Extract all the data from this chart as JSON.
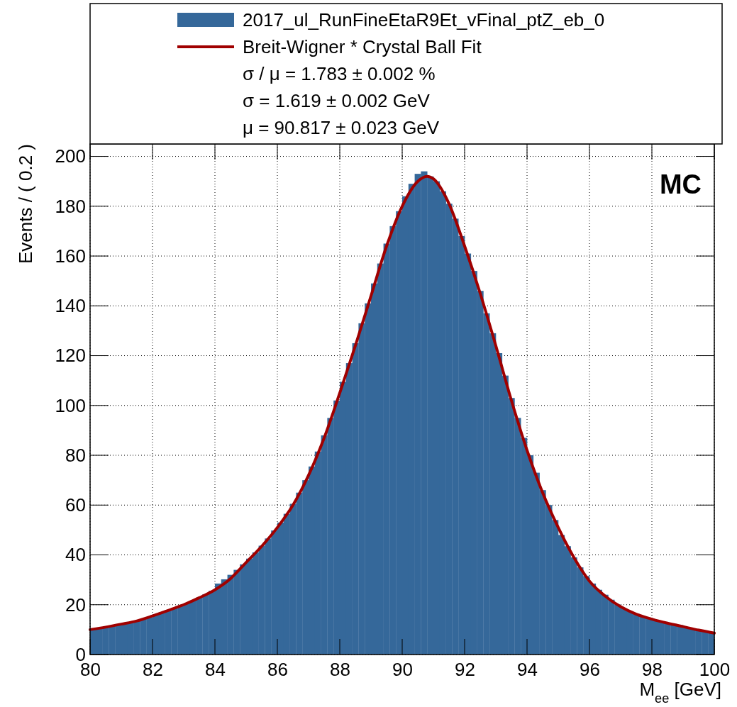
{
  "chart_data": {
    "type": "histogram",
    "xlabel": "M$_{ee}$ [GeV]",
    "ylabel": "Events / ( 0.2 )",
    "bins": [
      80,
      80.2,
      80.4,
      80.6,
      80.8,
      81,
      81.2,
      81.4,
      81.6,
      81.8,
      82,
      82.2,
      82.4,
      82.6,
      82.8,
      83,
      83.2,
      83.4,
      83.6,
      83.8,
      84,
      84.2,
      84.4,
      84.6,
      84.8,
      85,
      85.2,
      85.4,
      85.6,
      85.8,
      86,
      86.2,
      86.4,
      86.6,
      86.8,
      87,
      87.2,
      87.4,
      87.6,
      87.8,
      88,
      88.2,
      88.4,
      88.6,
      88.8,
      89,
      89.2,
      89.4,
      89.6,
      89.8,
      90,
      90.2,
      90.4,
      90.6,
      90.8,
      91,
      91.2,
      91.4,
      91.6,
      91.8,
      92,
      92.2,
      92.4,
      92.6,
      92.8,
      93,
      93.2,
      93.4,
      93.6,
      93.8,
      94,
      94.2,
      94.4,
      94.6,
      94.8,
      95,
      95.2,
      95.4,
      95.6,
      95.8,
      96,
      96.2,
      96.4,
      96.6,
      96.8,
      97,
      97.2,
      97.4,
      97.6,
      97.8,
      98,
      98.2,
      98.4,
      98.6,
      98.8,
      99,
      99.2,
      99.4,
      99.6,
      99.8,
      100
    ],
    "series": [
      {
        "name": "2017_ul_RunFineEtaR9Et_vFinal_ptZ_eb_0",
        "color": "#35689a",
        "values": [
          10.3,
          10.7,
          11.1,
          11.6,
          12.0,
          12.5,
          13.0,
          13.6,
          14.2,
          14.8,
          16.2,
          17.0,
          17.8,
          18.7,
          19.6,
          20.6,
          21.7,
          22.9,
          24.2,
          25.6,
          28.5,
          30.2,
          32.0,
          34.0,
          36.2,
          38.5,
          41,
          43.7,
          46.6,
          49.8,
          53,
          56.5,
          60.5,
          65,
          70,
          75.5,
          81.5,
          88,
          95,
          102,
          109.5,
          117,
          125,
          133,
          141,
          149,
          157,
          165,
          172,
          178,
          184,
          189,
          193,
          194,
          192,
          190,
          186,
          181,
          175,
          168,
          161,
          154,
          146,
          137,
          129,
          121,
          112,
          103,
          95,
          87,
          80,
          73,
          66,
          60,
          54,
          48,
          43.5,
          39,
          35,
          31.5,
          28.5,
          26,
          24,
          22,
          20,
          18.5,
          17.3,
          16.3,
          15.4,
          14.6,
          13.9,
          13.3,
          12.8,
          12.3,
          11.8,
          11.0,
          10.4,
          9.8,
          9.2,
          8.6
        ]
      },
      {
        "name": "Breit-Wigner * Crystal Ball Fit",
        "type": "line",
        "color": "#a00000",
        "x": [
          80,
          80.5,
          81,
          81.5,
          82,
          82.5,
          83,
          83.5,
          84,
          84.5,
          85,
          85.5,
          86,
          86.5,
          87,
          87.5,
          88,
          88.5,
          89,
          89.5,
          90,
          90.5,
          90.8,
          91,
          91.5,
          92,
          92.5,
          93,
          93.5,
          94,
          94.5,
          95,
          95.5,
          96,
          96.5,
          97,
          97.5,
          98,
          98.5,
          99,
          99.5,
          100
        ],
        "values": [
          10.0,
          11.0,
          12.2,
          13.5,
          15.5,
          17.7,
          20,
          22.8,
          26,
          30.5,
          37,
          43.5,
          51,
          60,
          72,
          87,
          105,
          124,
          144,
          164,
          180,
          190,
          192,
          191,
          181,
          164,
          145,
          124,
          102,
          82,
          65,
          51,
          39,
          29.5,
          23.5,
          19.2,
          16.2,
          14.2,
          12.6,
          11.2,
          9.8,
          8.6
        ]
      }
    ],
    "xlim": [
      80,
      100
    ],
    "xticks": [
      80,
      82,
      84,
      86,
      88,
      90,
      92,
      94,
      96,
      98,
      100
    ],
    "ylim": [
      0,
      205
    ],
    "yticks": [
      0,
      20,
      40,
      60,
      80,
      100,
      120,
      140,
      160,
      180,
      200
    ],
    "grid": true,
    "legend": "top",
    "annotations": [
      "σ / μ = 1.783 ± 0.002 %",
      "σ = 1.619 ± 0.002 GeV",
      "μ = 90.817 ± 0.023 GeV",
      "MC"
    ]
  }
}
